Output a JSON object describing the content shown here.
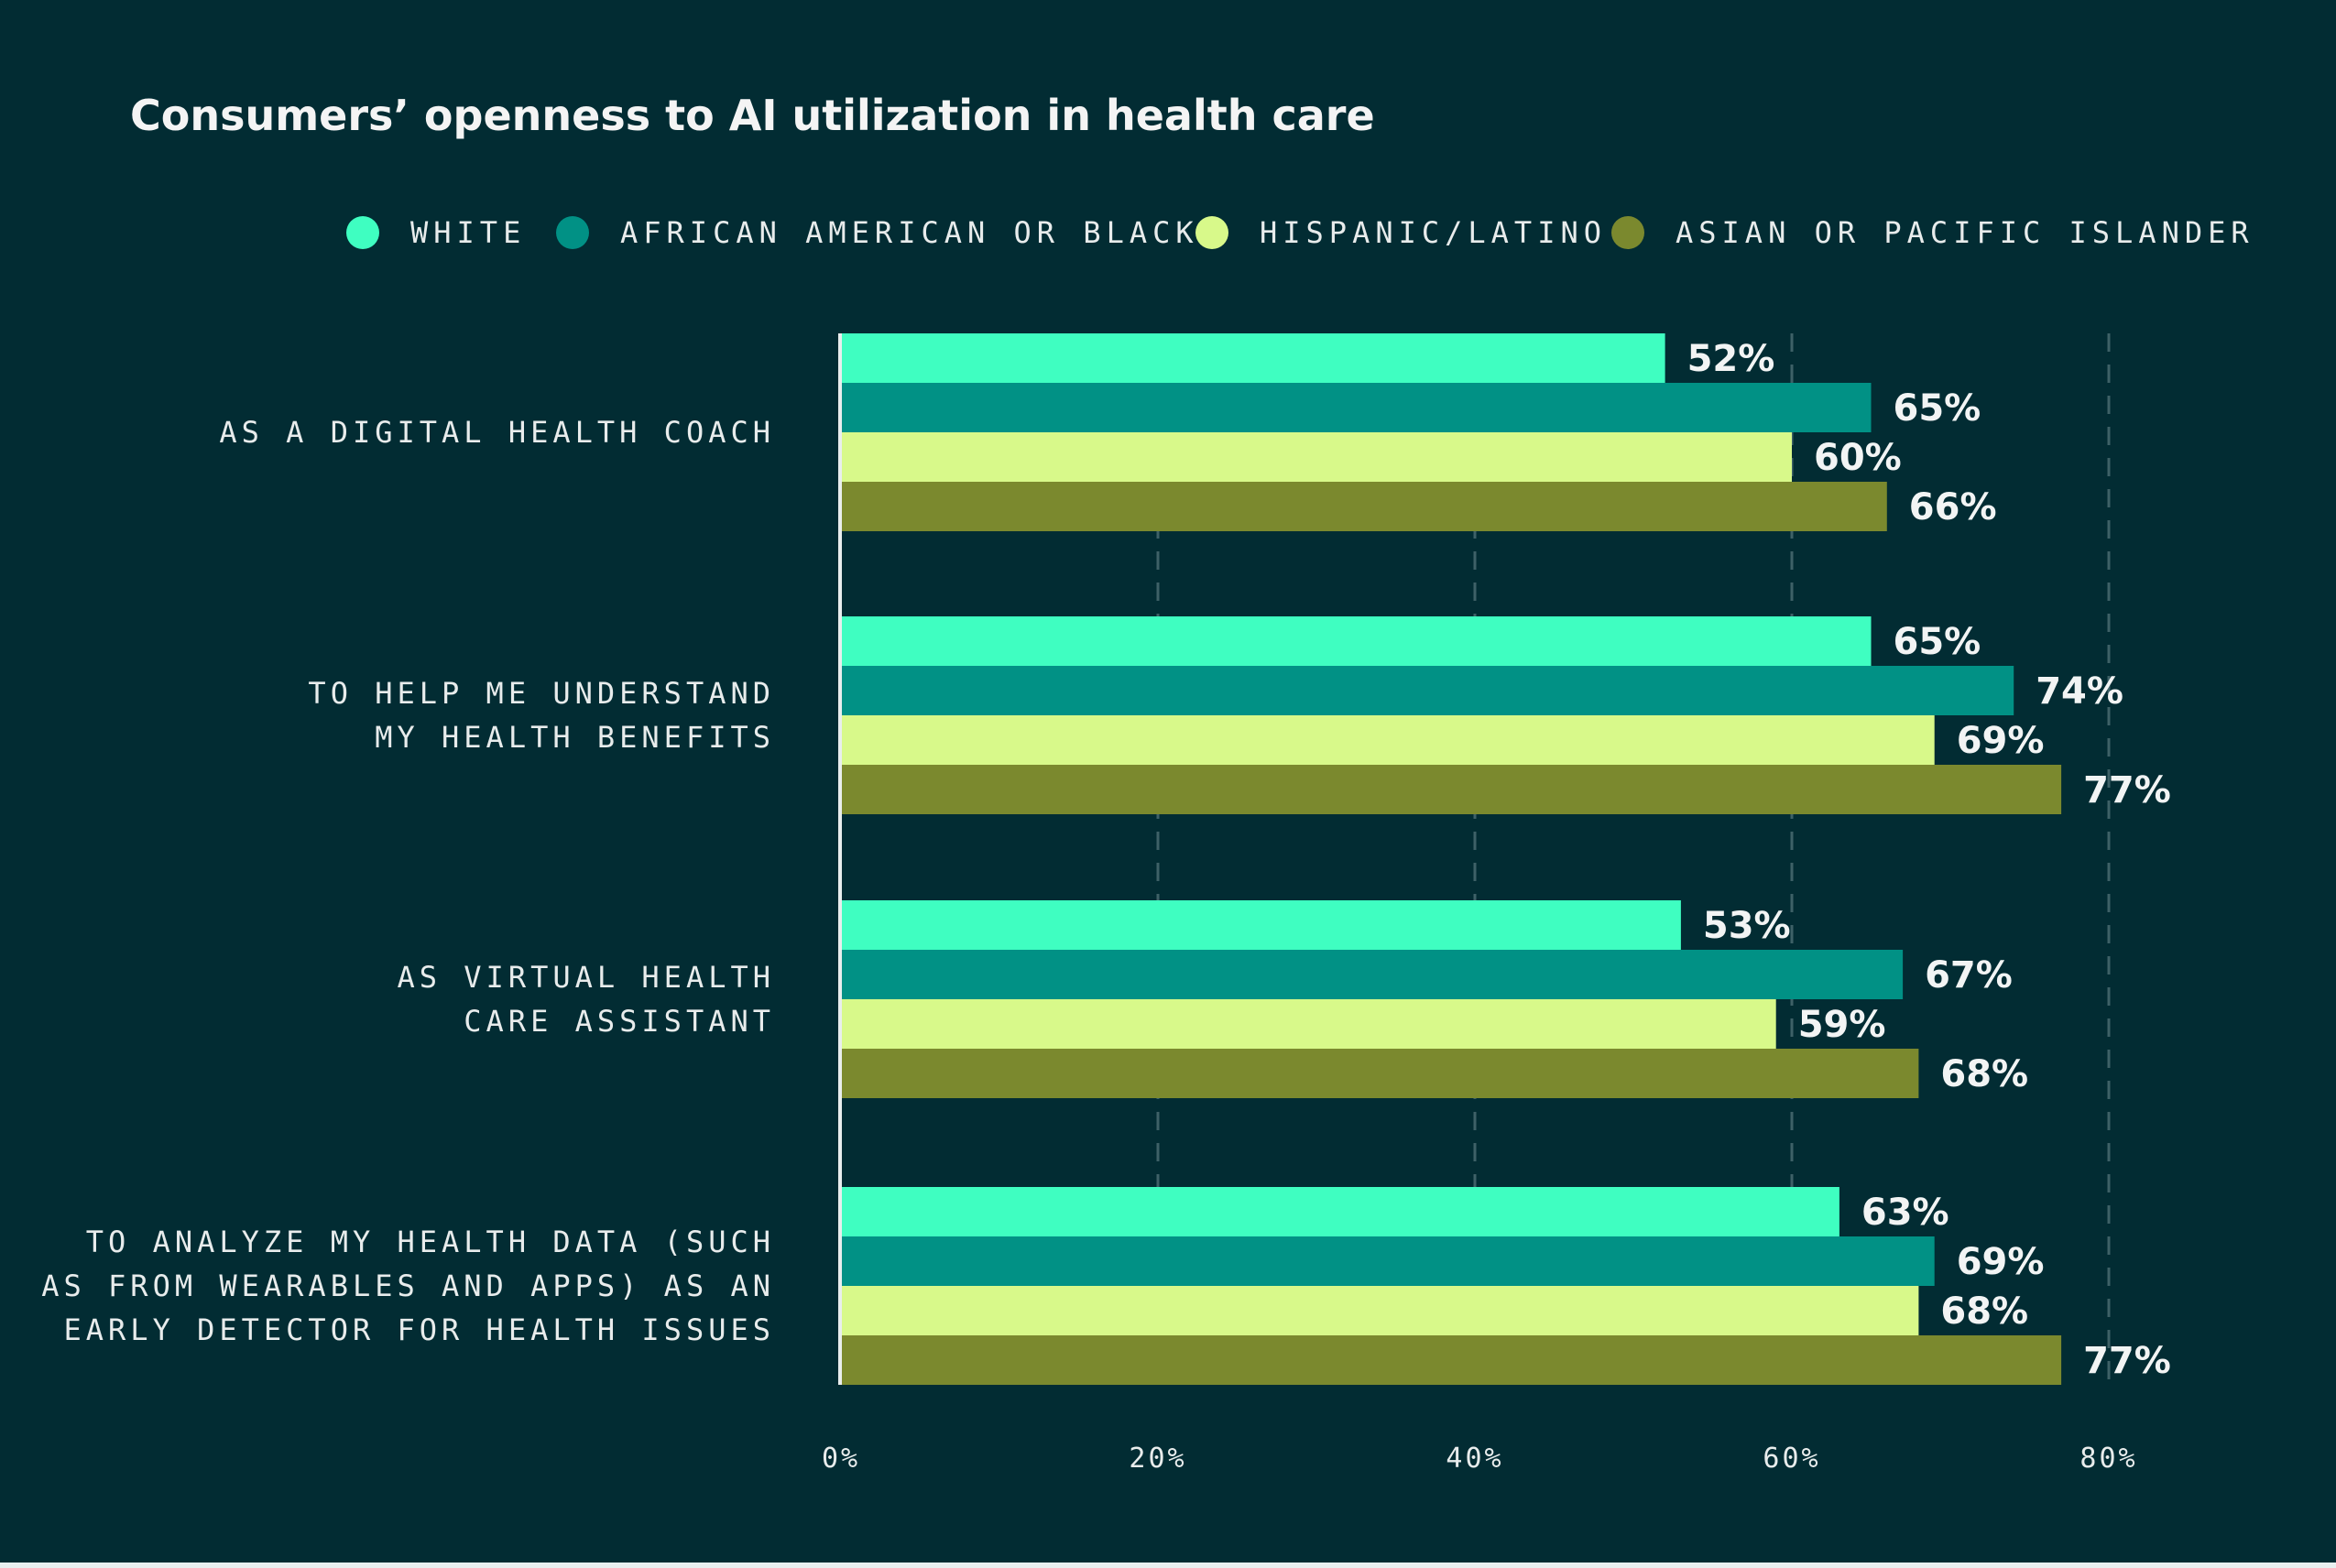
{
  "chart_data": {
    "type": "bar",
    "orientation": "horizontal",
    "title": "Consumers’ openness to AI utilization in health care",
    "categories": [
      [
        "AS A DIGITAL HEALTH COACH"
      ],
      [
        "TO HELP ME UNDERSTAND",
        "MY HEALTH BENEFITS"
      ],
      [
        "AS VIRTUAL HEALTH",
        "CARE ASSISTANT"
      ],
      [
        "TO ANALYZE MY HEALTH DATA (SUCH",
        "AS FROM WEARABLES AND APPS) AS AN",
        "EARLY DETECTOR FOR HEALTH ISSUES"
      ]
    ],
    "series": [
      {
        "name": "WHITE",
        "color": "#3ffec1",
        "values": [
          52,
          65,
          53,
          63
        ]
      },
      {
        "name": "AFRICAN AMERICAN OR BLACK",
        "color": "#019185",
        "values": [
          65,
          74,
          67,
          69
        ]
      },
      {
        "name": "HISPANIC/LATINO",
        "color": "#d8f98a",
        "values": [
          60,
          69,
          59,
          68
        ]
      },
      {
        "name": "ASIAN OR PACIFIC ISLANDER",
        "color": "#7b892e",
        "values": [
          66,
          77,
          68,
          77
        ]
      }
    ],
    "value_suffix": "%",
    "xlim": [
      0,
      80
    ],
    "xticks": [
      0,
      20,
      40,
      60,
      80
    ],
    "xtick_labels": [
      "0%",
      "20%",
      "40%",
      "60%",
      "80%"
    ],
    "grid": true,
    "legend": "top"
  },
  "colors": {
    "background": "#022c33",
    "gridline": "#3e6167",
    "axis": "#e9eeee"
  }
}
